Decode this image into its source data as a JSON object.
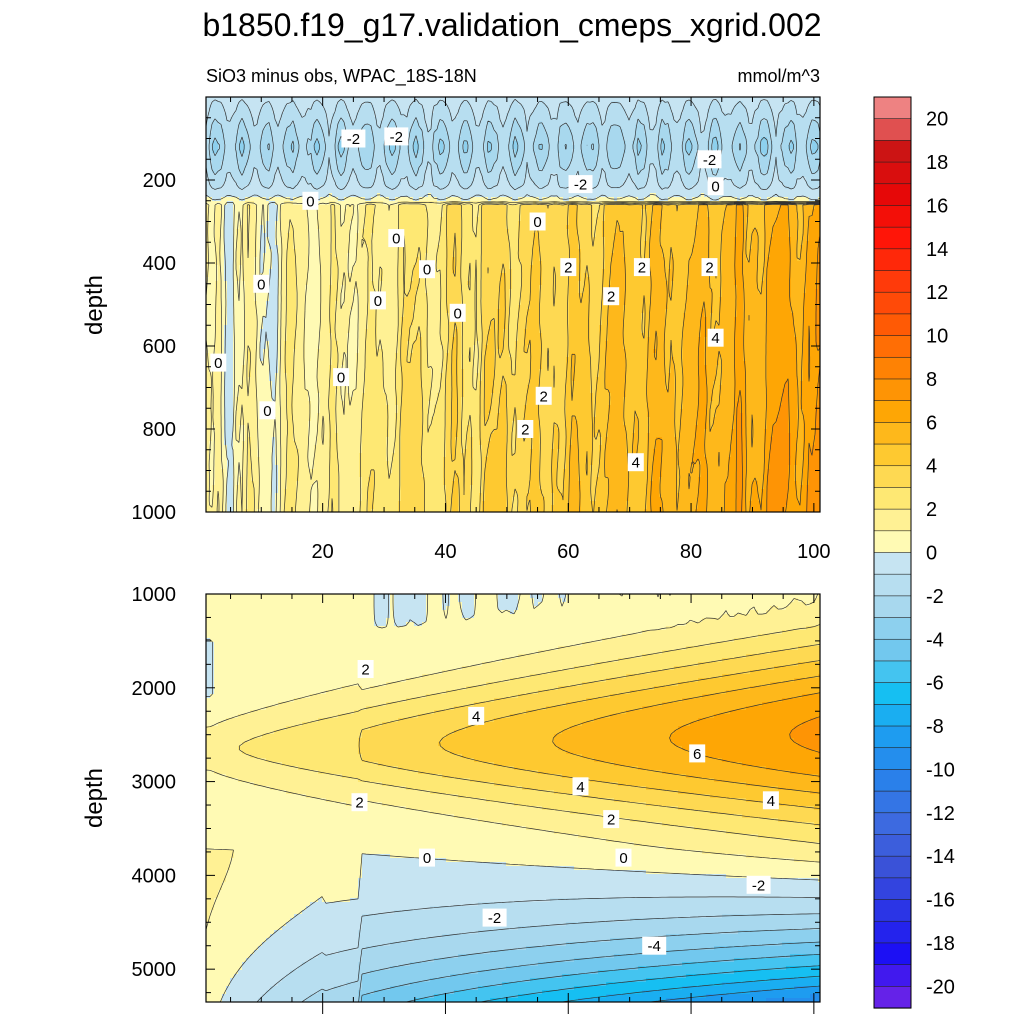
{
  "chart_data": {
    "type": "contour",
    "title": "b1850.f19_g17.validation_cmeps_xgrid.002",
    "subtitle": "SiO3 minus obs, WPAC_18S-18N",
    "units": "mmol/m^3",
    "colorbar": {
      "min": -21,
      "max": 21,
      "step": 1,
      "tick_labels": [
        "20",
        "18",
        "16",
        "14",
        "12",
        "10",
        "8",
        "6",
        "4",
        "2",
        "0",
        "-2",
        "-4",
        "-6",
        "-8",
        "-10",
        "-12",
        "-14",
        "-16",
        "-18",
        "-20"
      ],
      "tick_values": [
        20,
        18,
        16,
        14,
        12,
        10,
        8,
        6,
        4,
        2,
        0,
        -2,
        -4,
        -6,
        -8,
        -10,
        -12,
        -14,
        -16,
        -18,
        -20
      ]
    },
    "panels": [
      {
        "name": "upper",
        "ylabel": "depth",
        "xlim": [
          1,
          101
        ],
        "ylim": [
          0,
          1000
        ],
        "y_inverted": true,
        "xticks": [
          "20",
          "40",
          "60",
          "80",
          "100"
        ],
        "xtick_values": [
          20,
          40,
          60,
          80,
          100
        ],
        "yticks": [
          "200",
          "400",
          "600",
          "800",
          "1000"
        ],
        "ytick_values": [
          200,
          400,
          600,
          800,
          1000
        ],
        "contour_labels": [
          {
            "text": "-2",
            "x": 25,
            "y": 100
          },
          {
            "text": "-2",
            "x": 32,
            "y": 95
          },
          {
            "text": "-2",
            "x": 83,
            "y": 150
          },
          {
            "text": "-2",
            "x": 62,
            "y": 210
          },
          {
            "text": "0",
            "x": 18,
            "y": 250
          },
          {
            "text": "0",
            "x": 84,
            "y": 215
          },
          {
            "text": "0",
            "x": 55,
            "y": 300
          },
          {
            "text": "0",
            "x": 32,
            "y": 340
          },
          {
            "text": "0",
            "x": 37,
            "y": 415
          },
          {
            "text": "0",
            "x": 10,
            "y": 450
          },
          {
            "text": "0",
            "x": 29,
            "y": 490
          },
          {
            "text": "0",
            "x": 42,
            "y": 520
          },
          {
            "text": "0",
            "x": 3,
            "y": 640
          },
          {
            "text": "0",
            "x": 23,
            "y": 675
          },
          {
            "text": "0",
            "x": 11,
            "y": 755
          },
          {
            "text": "2",
            "x": 60,
            "y": 410
          },
          {
            "text": "2",
            "x": 72,
            "y": 410
          },
          {
            "text": "2",
            "x": 83,
            "y": 410
          },
          {
            "text": "2",
            "x": 67,
            "y": 480
          },
          {
            "text": "2",
            "x": 56,
            "y": 720
          },
          {
            "text": "2",
            "x": 53,
            "y": 800
          },
          {
            "text": "4",
            "x": 84,
            "y": 580
          },
          {
            "text": "4",
            "x": 71,
            "y": 880
          }
        ]
      },
      {
        "name": "lower",
        "ylabel": "depth",
        "xlim": [
          1,
          101
        ],
        "ylim": [
          1000,
          5350
        ],
        "y_inverted": true,
        "xticks": [],
        "yticks": [
          "1000",
          "2000",
          "3000",
          "4000",
          "5000"
        ],
        "ytick_values": [
          1000,
          2000,
          3000,
          4000,
          5000
        ],
        "contour_labels": [
          {
            "text": "2",
            "x": 27,
            "y": 1800
          },
          {
            "text": "4",
            "x": 45,
            "y": 2300
          },
          {
            "text": "6",
            "x": 81,
            "y": 2700
          },
          {
            "text": "4",
            "x": 62,
            "y": 3050
          },
          {
            "text": "4",
            "x": 93,
            "y": 3200
          },
          {
            "text": "2",
            "x": 26,
            "y": 3220
          },
          {
            "text": "2",
            "x": 67,
            "y": 3400
          },
          {
            "text": "0",
            "x": 37,
            "y": 3810
          },
          {
            "text": "0",
            "x": 69,
            "y": 3810
          },
          {
            "text": "-2",
            "x": 91,
            "y": 4100
          },
          {
            "text": "-2",
            "x": 48,
            "y": 4450
          },
          {
            "text": "-4",
            "x": 74,
            "y": 4750
          }
        ]
      }
    ]
  }
}
